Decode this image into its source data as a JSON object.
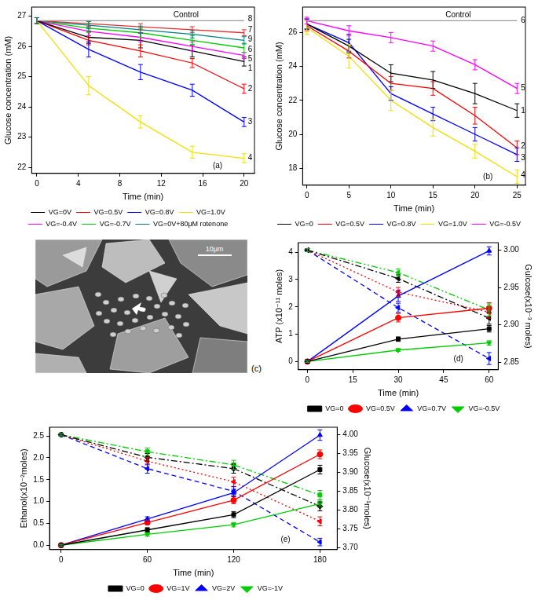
{
  "chart_data": [
    {
      "type": "line",
      "x_label": "Time (min)",
      "y_label": "Glucose concentration (mM)",
      "x": [
        0,
        5,
        10,
        15,
        20
      ],
      "xlim": [
        -0.5,
        21
      ],
      "xticks": [
        0,
        4,
        8,
        12,
        16,
        20
      ],
      "ylim": [
        21.8,
        27.3
      ],
      "yticks": [
        22,
        23,
        24,
        25,
        26,
        27
      ],
      "grid": false,
      "legend": "bottom",
      "series": [
        {
          "name": "VG=0V",
          "color": "#000000",
          "values": [
            26.85,
            26.3,
            26.2,
            25.85,
            25.5
          ],
          "errors": [
            0.1,
            0.2,
            0.25,
            0.2,
            0.15
          ]
        },
        {
          "name": "VG=0.5V",
          "color": "#ff0000",
          "values": [
            26.85,
            26.2,
            25.85,
            25.45,
            24.6
          ],
          "errors": [
            0.1,
            0.15,
            0.2,
            0.15,
            0.15
          ]
        },
        {
          "name": "VG=0.8V",
          "color": "#0000ff",
          "values": [
            26.85,
            25.9,
            25.15,
            24.55,
            23.5
          ],
          "errors": [
            0.1,
            0.25,
            0.25,
            0.2,
            0.15
          ]
        },
        {
          "name": "VG=1.0V",
          "color": "#f0e000",
          "values": [
            26.85,
            24.7,
            23.5,
            22.5,
            22.3
          ],
          "errors": [
            0.1,
            0.3,
            0.2,
            0.2,
            0.15
          ]
        },
        {
          "name": "VG=-0.4V",
          "color": "#ff00ff",
          "values": [
            26.85,
            26.5,
            26.3,
            26.0,
            25.7
          ],
          "errors": [
            0.1,
            0.15,
            0.15,
            0.15,
            0.1
          ]
        },
        {
          "name": "VG=-0.7V",
          "color": "#00cc00",
          "values": [
            26.85,
            26.6,
            26.45,
            26.2,
            25.95
          ],
          "errors": [
            0.1,
            0.15,
            0.15,
            0.15,
            0.15
          ]
        },
        {
          "name": "VG=0.5V",
          "color": "#e03030",
          "values": [
            26.85,
            26.75,
            26.65,
            26.55,
            26.45
          ],
          "errors": [
            0.1,
            0.1,
            0.1,
            0.1,
            0.1
          ]
        },
        {
          "name": "VG=0V+80μM rotenone",
          "color": "#008080",
          "values": [
            26.85,
            26.7,
            26.55,
            26.4,
            26.2
          ],
          "errors": [
            0.1,
            0.12,
            0.12,
            0.12,
            0.12
          ]
        }
      ],
      "annotations": [
        {
          "type": "hline",
          "text": "Control",
          "x": 0,
          "x_end": 20,
          "y": 26.85,
          "color": "#999999"
        },
        {
          "text": "8",
          "x": 20,
          "y": 26.9
        },
        {
          "text": "7",
          "x": 20,
          "y": 26.55
        },
        {
          "text": "9",
          "x": 20,
          "y": 26.22
        },
        {
          "text": "6",
          "x": 20,
          "y": 25.9
        },
        {
          "text": "5",
          "x": 20,
          "y": 25.58
        },
        {
          "text": "1",
          "x": 20,
          "y": 25.26
        },
        {
          "text": "2",
          "x": 20,
          "y": 24.6
        },
        {
          "text": "3",
          "x": 20,
          "y": 23.5
        },
        {
          "text": "4",
          "x": 20,
          "y": 22.3
        },
        {
          "text": "(a)",
          "x": 16.6,
          "y": 22.05
        }
      ]
    },
    {
      "type": "line",
      "x_label": "Time (min)",
      "y_label": "Glucose concentration (mM)",
      "x": [
        0,
        5,
        10,
        15,
        20,
        25
      ],
      "xlim": [
        -0.5,
        26
      ],
      "xticks": [
        0,
        5,
        10,
        15,
        20,
        25
      ],
      "ylim": [
        17,
        27.5
      ],
      "yticks": [
        18,
        20,
        22,
        24,
        26
      ],
      "grid": false,
      "legend": "bottom",
      "series": [
        {
          "name": "VG=0",
          "color": "#000000",
          "values": [
            26.5,
            25.2,
            23.6,
            23.2,
            22.4,
            21.4
          ],
          "errors": [
            0.3,
            0.4,
            0.5,
            0.5,
            0.6,
            0.4
          ]
        },
        {
          "name": "VG=0.5V",
          "color": "#ff0000",
          "values": [
            26.4,
            24.9,
            23.0,
            22.7,
            21.1,
            19.2
          ],
          "errors": [
            0.3,
            0.4,
            0.4,
            0.4,
            0.5,
            0.4
          ]
        },
        {
          "name": "VG=0.8V",
          "color": "#0000ff",
          "values": [
            26.5,
            25.4,
            22.4,
            21.2,
            20.0,
            18.8
          ],
          "errors": [
            0.3,
            0.5,
            0.4,
            0.4,
            0.4,
            0.4
          ]
        },
        {
          "name": "VG=1.0V",
          "color": "#f0e000",
          "values": [
            26.3,
            24.6,
            22.0,
            20.4,
            19.0,
            17.5
          ],
          "errors": [
            0.4,
            0.7,
            0.6,
            0.5,
            0.4,
            0.4
          ]
        },
        {
          "name": "VG=-0.5V",
          "color": "#ff00ff",
          "values": [
            26.7,
            26.1,
            25.7,
            25.2,
            24.1,
            22.7
          ],
          "errors": [
            0.2,
            0.3,
            0.3,
            0.3,
            0.3,
            0.3
          ]
        }
      ],
      "annotations": [
        {
          "type": "hline",
          "text": "Control",
          "x": 0,
          "x_end": 25,
          "y": 26.7,
          "color": "#999999"
        },
        {
          "text": "6",
          "x": 25,
          "y": 26.7
        },
        {
          "text": "5",
          "x": 25,
          "y": 22.7
        },
        {
          "text": "1",
          "x": 25,
          "y": 21.4
        },
        {
          "text": "2",
          "x": 25,
          "y": 19.3
        },
        {
          "text": "3",
          "x": 25,
          "y": 18.6
        },
        {
          "text": "4",
          "x": 25,
          "y": 17.6
        },
        {
          "text": "(b)",
          "x": 20.5,
          "y": 17.5
        }
      ]
    },
    {
      "type": "line",
      "x_label": "Time (min)",
      "y_label": "ATP (x10⁻¹¹ moles)",
      "y2_label": "Gulcose(x10⁻³ moles)",
      "x": [
        0,
        30,
        60
      ],
      "xlim": [
        -3,
        63
      ],
      "xticks": [
        0,
        15,
        30,
        45,
        60
      ],
      "ylim": [
        -0.3,
        4.35
      ],
      "yticks": [
        0,
        1,
        2,
        3,
        4
      ],
      "y2lim": [
        2.84,
        3.01
      ],
      "y2ticks": [
        2.85,
        {
          "value": 2.9,
          "label": "2.90"
        },
        2.95,
        {
          "value": 3,
          "label": "3.00"
        }
      ],
      "grid": false,
      "legend": "bottom",
      "series": [
        {
          "name": "VG=0",
          "color": "#000000",
          "marker": "square",
          "line_style": "solid",
          "values": [
            0,
            0.82,
            1.2
          ],
          "errors": [
            0.03,
            0.08,
            0.12
          ]
        },
        {
          "name": "VG=0.5V",
          "color": "#ff0000",
          "marker": "circle",
          "line_style": "solid",
          "values": [
            0,
            1.6,
            1.95
          ],
          "errors": [
            0.03,
            0.15,
            0.2
          ]
        },
        {
          "name": "VG=0.7V",
          "color": "#0000ff",
          "marker": "triangle",
          "line_style": "solid",
          "values": [
            0,
            2.4,
            4.05
          ],
          "errors": [
            0.03,
            0.2,
            0.15
          ]
        },
        {
          "name": "VG=-0.5V",
          "color": "#00cc00",
          "marker": "triangle_down",
          "line_style": "solid",
          "values": [
            0,
            0.42,
            0.68
          ],
          "errors": [
            0.03,
            0.05,
            0.08
          ]
        },
        {
          "name": "VG=0",
          "color": "#000000",
          "marker": "triangle_left",
          "line_style": "dashdot",
          "axis": "y2",
          "values": [
            3.0,
            2.962,
            2.909
          ],
          "errors": [
            0.002,
            0.005,
            0.008
          ]
        },
        {
          "name": "VG=0.5V",
          "color": "#ff0000",
          "marker": "triangle_left",
          "line_style": "dotted",
          "axis": "y2",
          "values": [
            3.0,
            2.944,
            2.917
          ],
          "errors": [
            0.002,
            0.006,
            0.008
          ]
        },
        {
          "name": "VG=0.7V",
          "color": "#0000ff",
          "marker": "triangle_left",
          "line_style": "dashed",
          "axis": "y2",
          "values": [
            3.0,
            2.923,
            2.855
          ],
          "errors": [
            0.002,
            0.006,
            0.008
          ]
        },
        {
          "name": "VG=-0.5V",
          "color": "#00cc00",
          "marker": "triangle_left",
          "line_style": "dashdotdot",
          "axis": "y2",
          "values": [
            3.0,
            2.97,
            2.92
          ],
          "errors": [
            0.002,
            0.005,
            0.008
          ]
        }
      ],
      "annotations": [
        {
          "text": "(d)",
          "x": 47,
          "y": 0.1
        }
      ]
    },
    {
      "type": "line",
      "x_label": "Time (min)",
      "y_label": "Ethanol(x10⁻²moles)",
      "y2_label": "Glucose(x10⁻¹moles)",
      "x": [
        0,
        60,
        120,
        180
      ],
      "xlim": [
        -8,
        192
      ],
      "xticks": [
        0,
        60,
        120,
        180
      ],
      "ylim": [
        -0.1,
        2.7
      ],
      "yticks": [
        {
          "value": 0,
          "label": "0.0"
        },
        0.5,
        {
          "value": 1,
          "label": "1.0"
        },
        1.5,
        {
          "value": 2,
          "label": "2.0"
        },
        2.5
      ],
      "y2lim": [
        3.695,
        4.02
      ],
      "y2ticks": [
        {
          "value": 3.7,
          "label": "3.70"
        },
        3.75,
        {
          "value": 3.8,
          "label": "3.80"
        },
        3.85,
        {
          "value": 3.9,
          "label": "3.90"
        },
        3.95,
        {
          "value": 4,
          "label": "4.00"
        }
      ],
      "grid": false,
      "legend": "bottom",
      "series": [
        {
          "name": "VG=0",
          "color": "#000000",
          "marker": "square",
          "line_style": "solid",
          "values": [
            0,
            0.35,
            0.7,
            1.73
          ],
          "errors": [
            0.02,
            0.05,
            0.07,
            0.1
          ]
        },
        {
          "name": "VG=1V",
          "color": "#ff0000",
          "marker": "circle",
          "line_style": "solid",
          "values": [
            0,
            0.52,
            1.03,
            2.08
          ],
          "errors": [
            0.02,
            0.05,
            0.08,
            0.1
          ]
        },
        {
          "name": "VG=2V",
          "color": "#0000ff",
          "marker": "triangle",
          "line_style": "solid",
          "values": [
            0,
            0.6,
            1.2,
            2.52
          ],
          "errors": [
            0.02,
            0.05,
            0.08,
            0.12
          ]
        },
        {
          "name": "VG=-1V",
          "color": "#00cc00",
          "marker": "triangle_down",
          "line_style": "solid",
          "values": [
            0,
            0.25,
            0.47,
            0.95
          ],
          "errors": [
            0.02,
            0.04,
            0.05,
            0.08
          ]
        },
        {
          "name": "VG=0",
          "color": "#000000",
          "marker": "diamond",
          "line_style": "dashdot",
          "axis": "y2",
          "values": [
            4.0,
            3.94,
            3.91,
            3.81
          ],
          "errors": [
            0.003,
            0.01,
            0.012,
            0.012
          ]
        },
        {
          "name": "VG=1V",
          "color": "#ff0000",
          "marker": "triangle_left",
          "line_style": "dotted",
          "axis": "y2",
          "values": [
            4.0,
            3.93,
            3.875,
            3.77
          ],
          "errors": [
            0.003,
            0.01,
            0.012,
            0.012
          ]
        },
        {
          "name": "VG=2V",
          "color": "#0000ff",
          "marker": "triangle_left",
          "line_style": "dashed",
          "axis": "y2",
          "values": [
            4.0,
            3.91,
            3.85,
            3.715
          ],
          "errors": [
            0.003,
            0.012,
            0.012,
            0.01
          ]
        },
        {
          "name": "VG=-1V",
          "color": "#00cc00",
          "marker": "square",
          "line_style": "dashdot",
          "axis": "y2",
          "values": [
            4.0,
            3.955,
            3.92,
            3.84
          ],
          "errors": [
            0.003,
            0.01,
            0.012,
            0.012
          ]
        }
      ],
      "annotations": [
        {
          "text": "(e)",
          "x": 150,
          "y": 0.12
        }
      ]
    }
  ],
  "image": {
    "label": "(c)",
    "scale_bar": "10μm"
  }
}
